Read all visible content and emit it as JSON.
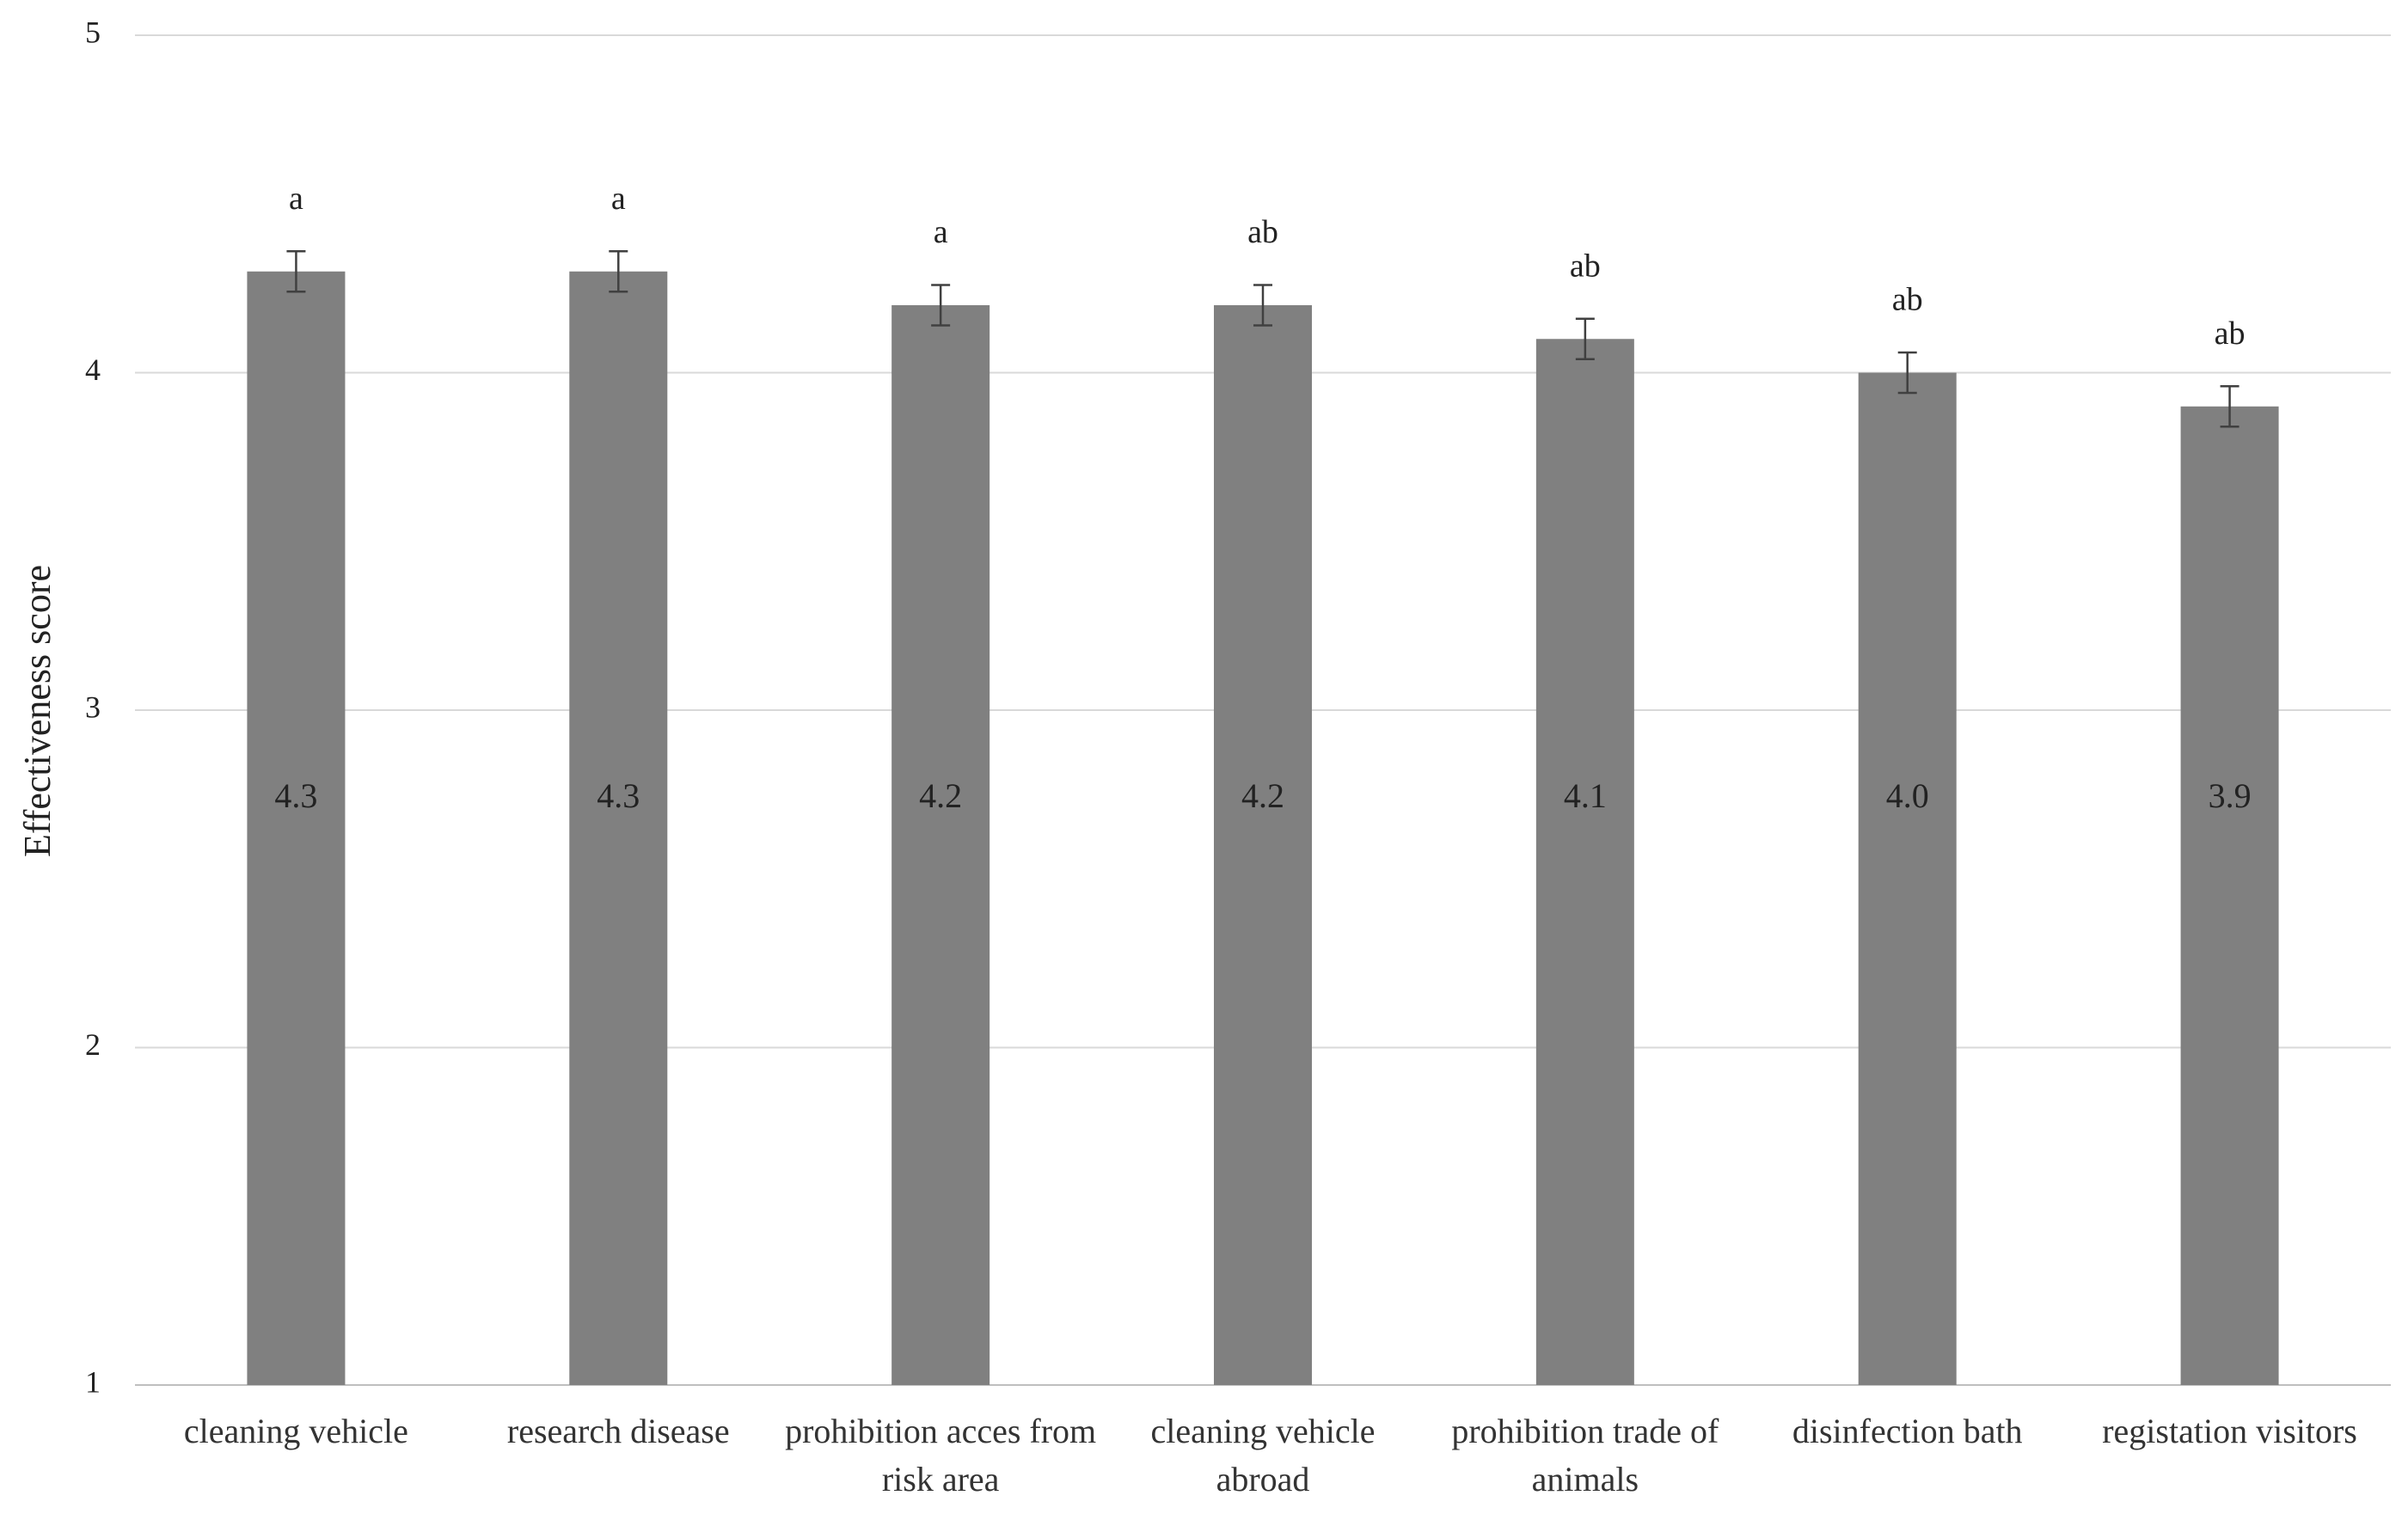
{
  "chart_data": {
    "type": "bar",
    "y_label": "Effectiveness score",
    "categories": [
      "cleaning vehicle",
      "research disease",
      "prohibition acces from risk area",
      "cleaning vehicle abroad",
      "prohibition trade of animals",
      "disinfection bath",
      "registation visitors"
    ],
    "values": [
      4.3,
      4.3,
      4.2,
      4.2,
      4.1,
      4.0,
      3.9
    ],
    "value_labels": [
      "4.3",
      "4.3",
      "4.2",
      "4.2",
      "4.1",
      "4.0",
      "3.9"
    ],
    "errors": [
      0.06,
      0.06,
      0.06,
      0.06,
      0.06,
      0.06,
      0.06
    ],
    "letters": [
      "a",
      "a",
      "a",
      "ab",
      "ab",
      "ab",
      "ab"
    ],
    "color": "#808080",
    "ylim": [
      1,
      5
    ],
    "yticks": [
      1,
      2,
      3,
      4,
      5
    ],
    "grid": true
  }
}
